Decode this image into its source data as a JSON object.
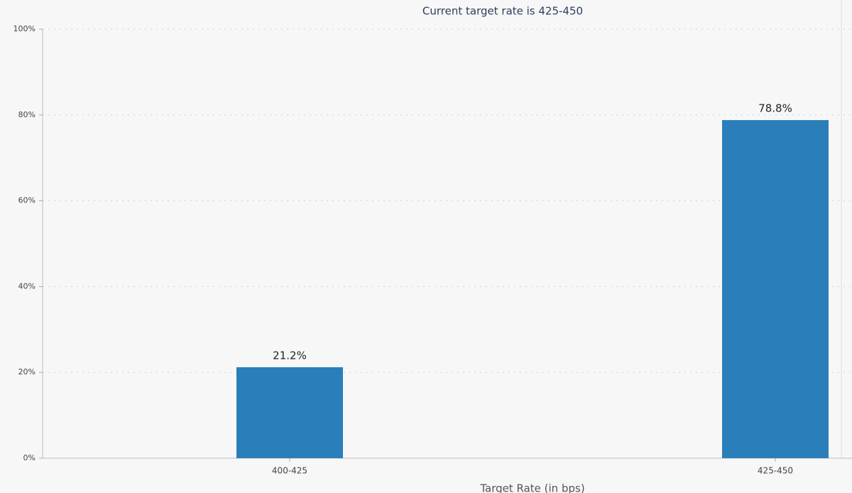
{
  "chart_data": {
    "type": "bar",
    "title": "Current target rate is 425-450",
    "x_label": "Target Rate (in bps)",
    "categories": [
      "400-425",
      "425-450"
    ],
    "values": [
      21.2,
      78.8
    ],
    "value_labels": [
      "21.2%",
      "78.8%"
    ],
    "color": "#2a7fba",
    "ylim": [
      0,
      100
    ],
    "yticks": [
      {
        "value": 0,
        "label": "0%"
      },
      {
        "value": 20,
        "label": "20%"
      },
      {
        "value": 40,
        "label": "40%"
      },
      {
        "value": 60,
        "label": "60%"
      },
      {
        "value": 80,
        "label": "80%"
      },
      {
        "value": 100,
        "label": "100%"
      }
    ],
    "grid": true
  }
}
